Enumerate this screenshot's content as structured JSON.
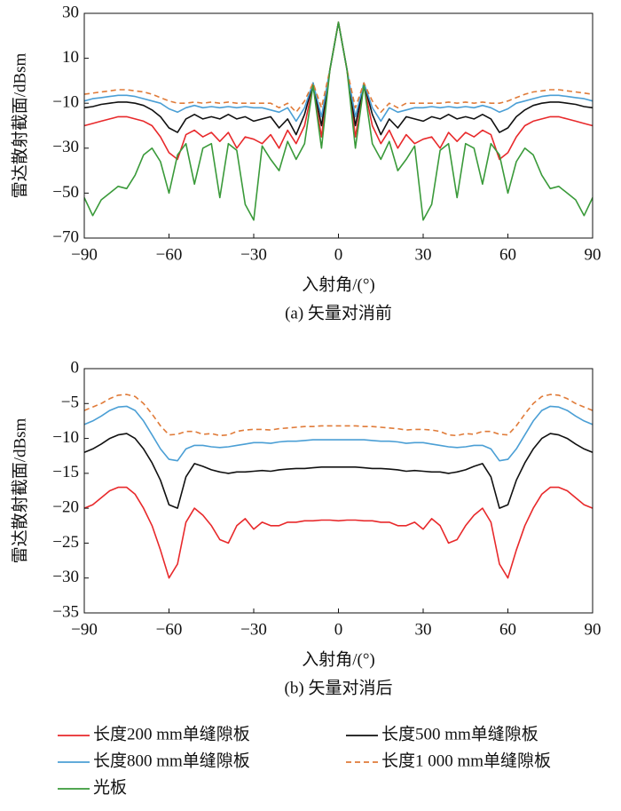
{
  "chart_data": [
    {
      "type": "line",
      "title": "(a) 矢量对消前",
      "xlabel": "入射角/(°)",
      "ylabel": "雷达散射截面/dBsm",
      "xlim": [
        -90,
        90
      ],
      "ylim": [
        -70,
        30
      ],
      "xticks": [
        {
          "value": -90,
          "label": "−90"
        },
        {
          "value": -60,
          "label": "−60"
        },
        {
          "value": -30,
          "label": "−30"
        },
        0,
        30,
        60,
        90
      ],
      "yticks": [
        {
          "value": -70,
          "label": "−70"
        },
        {
          "value": -50,
          "label": "−50"
        },
        {
          "value": -30,
          "label": "−30"
        },
        {
          "value": -10,
          "label": "−10"
        },
        10,
        30
      ],
      "x": [
        -90,
        -87,
        -84,
        -81,
        -78,
        -75,
        -72,
        -69,
        -66,
        -63,
        -60,
        -57,
        -54,
        -51,
        -48,
        -45,
        -42,
        -39,
        -36,
        -33,
        -30,
        -27,
        -24,
        -21,
        -18,
        -15,
        -12,
        -9,
        -6,
        -3,
        0,
        3,
        6,
        9,
        12,
        15,
        18,
        21,
        24,
        27,
        30,
        33,
        36,
        39,
        42,
        45,
        48,
        51,
        54,
        57,
        60,
        63,
        66,
        69,
        72,
        75,
        78,
        81,
        84,
        87,
        90
      ],
      "series": [
        {
          "name": "长度200 mm单缝隙板",
          "color": "#e8292b",
          "dashed": false,
          "values": [
            -20,
            -19,
            -18,
            -17,
            -16,
            -16,
            -17,
            -18,
            -20,
            -25,
            -32,
            -35,
            -24,
            -22,
            -25,
            -23,
            -27,
            -23,
            -30,
            -25,
            -26,
            -28,
            -24,
            -30,
            -22,
            -28,
            -20,
            -2,
            -25,
            5,
            26,
            5,
            -25,
            -2,
            -20,
            -28,
            -22,
            -30,
            -24,
            -28,
            -26,
            -25,
            -30,
            -23,
            -27,
            -23,
            -25,
            -22,
            -24,
            -35,
            -32,
            -25,
            -20,
            -18,
            -17,
            -16,
            -16,
            -17,
            -18,
            -19,
            -20
          ]
        },
        {
          "name": "长度500 mm单缝隙板",
          "color": "#111111",
          "dashed": false,
          "values": [
            -12,
            -11.5,
            -10.5,
            -10,
            -9.5,
            -9.5,
            -10,
            -11,
            -13,
            -16,
            -21,
            -23,
            -17,
            -15,
            -17,
            -16,
            -17,
            -15,
            -17,
            -16,
            -18,
            -17,
            -16,
            -21,
            -17,
            -24,
            -15,
            -1,
            -20,
            5,
            26,
            5,
            -20,
            -1,
            -15,
            -24,
            -17,
            -21,
            -16,
            -17,
            -18,
            -16,
            -17,
            -15,
            -17,
            -16,
            -17,
            -15,
            -17,
            -23,
            -21,
            -16,
            -13,
            -11,
            -10,
            -9.5,
            -9.5,
            -10,
            -10.5,
            -11.5,
            -12
          ]
        },
        {
          "name": "长度800 mm单缝隙板",
          "color": "#4b9fd5",
          "dashed": false,
          "values": [
            -9,
            -8,
            -7.5,
            -7,
            -6.5,
            -6.5,
            -7,
            -8,
            -9,
            -10,
            -12.5,
            -14,
            -12,
            -11,
            -12,
            -11.5,
            -12,
            -11.5,
            -12,
            -11.5,
            -12,
            -12,
            -13,
            -14,
            -12,
            -18,
            -12,
            -1,
            -16,
            5,
            26,
            5,
            -16,
            -1,
            -12,
            -18,
            -12,
            -14,
            -13,
            -12,
            -12,
            -11.5,
            -12,
            -11.5,
            -12,
            -11.5,
            -12,
            -11,
            -12,
            -14,
            -12.5,
            -10,
            -9,
            -8,
            -7,
            -6.5,
            -6.5,
            -7,
            -7.5,
            -8,
            -9
          ]
        },
        {
          "name": "长度1 000 mm单缝隙板",
          "color": "#e07b39",
          "dashed": true,
          "values": [
            -6,
            -5.5,
            -5,
            -4.5,
            -4,
            -4,
            -4.5,
            -5,
            -6,
            -7.5,
            -9,
            -10,
            -10,
            -9.5,
            -10,
            -9.5,
            -10,
            -9.5,
            -10,
            -10,
            -10,
            -10,
            -10,
            -12,
            -10,
            -14,
            -9,
            -1,
            -12,
            5,
            26,
            5,
            -12,
            -1,
            -9,
            -14,
            -10,
            -12,
            -10,
            -10,
            -10,
            -10,
            -10,
            -9.5,
            -10,
            -9.5,
            -10,
            -9.5,
            -10,
            -10,
            -9,
            -7.5,
            -6,
            -5,
            -4.5,
            -4,
            -4,
            -4.5,
            -5,
            -5.5,
            -6
          ]
        },
        {
          "name": "光板",
          "color": "#3a9a3a",
          "dashed": false,
          "values": [
            -52,
            -60,
            -53,
            -50,
            -47,
            -48,
            -42,
            -33,
            -30,
            -36,
            -50,
            -33,
            -28,
            -46,
            -30,
            -28,
            -52,
            -28,
            -31,
            -55,
            -62,
            -29,
            -35,
            -40,
            -27,
            -35,
            -28,
            -2,
            -30,
            5,
            26,
            5,
            -30,
            -2,
            -28,
            -35,
            -27,
            -40,
            -35,
            -29,
            -62,
            -55,
            -31,
            -28,
            -52,
            -28,
            -30,
            -46,
            -28,
            -33,
            -50,
            -36,
            -30,
            -33,
            -42,
            -48,
            -47,
            -50,
            -53,
            -60,
            -52
          ]
        }
      ]
    },
    {
      "type": "line",
      "title": "(b) 矢量对消后",
      "xlabel": "入射角/(°)",
      "ylabel": "雷达散射截面/dBsm",
      "xlim": [
        -90,
        90
      ],
      "ylim": [
        -35,
        0
      ],
      "xticks": [
        {
          "value": -90,
          "label": "−90"
        },
        {
          "value": -60,
          "label": "−60"
        },
        {
          "value": -30,
          "label": "−30"
        },
        0,
        30,
        60,
        90
      ],
      "yticks": [
        {
          "value": -35,
          "label": "−35"
        },
        {
          "value": -30,
          "label": "−30"
        },
        {
          "value": -25,
          "label": "−25"
        },
        {
          "value": -20,
          "label": "−20"
        },
        {
          "value": -15,
          "label": "−15"
        },
        {
          "value": -10,
          "label": "−10"
        },
        {
          "value": -5,
          "label": "−5"
        },
        0
      ],
      "x": [
        -90,
        -87,
        -84,
        -81,
        -78,
        -75,
        -72,
        -69,
        -66,
        -63,
        -60,
        -57,
        -54,
        -51,
        -48,
        -45,
        -42,
        -39,
        -36,
        -33,
        -30,
        -27,
        -24,
        -21,
        -18,
        -15,
        -12,
        -9,
        -6,
        -3,
        0,
        3,
        6,
        9,
        12,
        15,
        18,
        21,
        24,
        27,
        30,
        33,
        36,
        39,
        42,
        45,
        48,
        51,
        54,
        57,
        60,
        63,
        66,
        69,
        72,
        75,
        78,
        81,
        84,
        87,
        90
      ],
      "series": [
        {
          "color": "#e8292b",
          "dashed": false,
          "values": [
            -20,
            -19.5,
            -18.5,
            -17.5,
            -17,
            -17,
            -18,
            -20,
            -22.5,
            -26,
            -30,
            -28,
            -22,
            -20,
            -21,
            -22.5,
            -24.5,
            -25,
            -22.5,
            -21.5,
            -23,
            -22,
            -22.5,
            -22.5,
            -22,
            -22,
            -21.8,
            -21.8,
            -21.7,
            -21.7,
            -21.8,
            -21.7,
            -21.7,
            -21.8,
            -21.8,
            -22,
            -22,
            -22.5,
            -22.5,
            -22,
            -23,
            -21.5,
            -22.5,
            -25,
            -24.5,
            -22.5,
            -21,
            -20,
            -22,
            -28,
            -30,
            -26,
            -22.5,
            -20,
            -18,
            -17,
            -17,
            -17.5,
            -18.5,
            -19.5,
            -20
          ]
        },
        {
          "color": "#111111",
          "dashed": false,
          "values": [
            -12,
            -11.5,
            -10.8,
            -10,
            -9.5,
            -9.3,
            -10,
            -11.5,
            -13.5,
            -16,
            -19.5,
            -20,
            -15.5,
            -13.6,
            -14,
            -14.5,
            -14.8,
            -15,
            -14.8,
            -14.8,
            -14.7,
            -14.6,
            -14.7,
            -14.5,
            -14.4,
            -14.3,
            -14.3,
            -14.2,
            -14.1,
            -14.1,
            -14.1,
            -14.1,
            -14.1,
            -14.2,
            -14.3,
            -14.3,
            -14.4,
            -14.5,
            -14.7,
            -14.6,
            -14.7,
            -14.8,
            -14.8,
            -15,
            -14.8,
            -14.5,
            -14,
            -13.6,
            -15.5,
            -20,
            -19.5,
            -16,
            -13.5,
            -11.5,
            -10,
            -9.3,
            -9.5,
            -10,
            -10.8,
            -11.5,
            -12
          ]
        },
        {
          "color": "#4b9fd5",
          "dashed": false,
          "values": [
            -8,
            -7.5,
            -6.8,
            -6,
            -5.5,
            -5.4,
            -6,
            -7.5,
            -9.5,
            -11.5,
            -13,
            -13.2,
            -11.5,
            -11,
            -11,
            -11.2,
            -11.3,
            -11.2,
            -11,
            -10.8,
            -10.6,
            -10.6,
            -10.7,
            -10.5,
            -10.4,
            -10.4,
            -10.3,
            -10.2,
            -10.2,
            -10.2,
            -10.2,
            -10.2,
            -10.2,
            -10.2,
            -10.3,
            -10.4,
            -10.4,
            -10.5,
            -10.7,
            -10.6,
            -10.6,
            -10.8,
            -11,
            -11.2,
            -11.3,
            -11.2,
            -11,
            -11,
            -11.5,
            -13.2,
            -13,
            -11.5,
            -9.5,
            -7.5,
            -6,
            -5.4,
            -5.5,
            -6,
            -6.8,
            -7.5,
            -8
          ]
        },
        {
          "color": "#e07b39",
          "dashed": true,
          "values": [
            -6,
            -5.5,
            -5,
            -4.3,
            -3.8,
            -3.7,
            -4,
            -5,
            -6.5,
            -8.2,
            -9.5,
            -9.4,
            -9,
            -9,
            -9.4,
            -9.3,
            -9.6,
            -9.5,
            -9,
            -8.8,
            -8.7,
            -8.7,
            -8.8,
            -8.6,
            -8.5,
            -8.4,
            -8.3,
            -8.3,
            -8.2,
            -8.2,
            -8.2,
            -8.2,
            -8.2,
            -8.3,
            -8.3,
            -8.4,
            -8.5,
            -8.6,
            -8.8,
            -8.7,
            -8.7,
            -8.8,
            -9,
            -9.5,
            -9.6,
            -9.3,
            -9.4,
            -9,
            -9,
            -9.4,
            -9.5,
            -8.2,
            -6.5,
            -5,
            -4,
            -3.7,
            -3.8,
            -4.3,
            -5,
            -5.5,
            -6
          ]
        }
      ]
    }
  ]
}
